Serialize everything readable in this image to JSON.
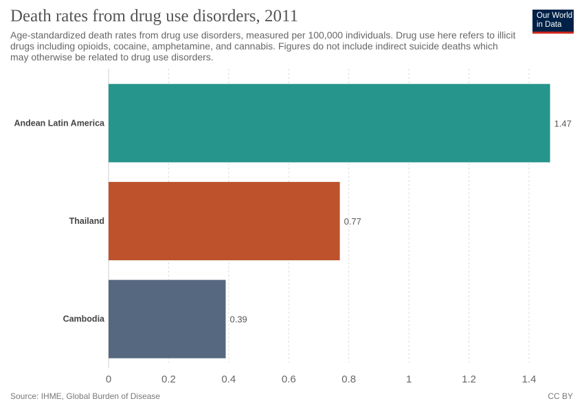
{
  "header": {
    "title": "Death rates from drug use disorders, 2011",
    "subtitle": "Age-standardized death rates from drug use disorders, measured per 100,000 individuals. Drug use here refers to illicit drugs including opioids, cocaine, amphetamine, and cannabis. Figures do not include indirect suicide deaths which may otherwise be related to drug use disorders.",
    "logo_line1": "Our World",
    "logo_line2": "in Data"
  },
  "footer": {
    "source": "Source: IHME, Global Burden of Disease",
    "license": "CC BY"
  },
  "colors": {
    "logo_bg": "#002147",
    "logo_accent": "#ce261e"
  },
  "chart_data": {
    "type": "bar",
    "orientation": "horizontal",
    "categories": [
      "Andean Latin America",
      "Thailand",
      "Cambodia"
    ],
    "values": [
      1.47,
      0.77,
      0.39
    ],
    "value_labels": [
      "1.47",
      "0.77",
      "0.39"
    ],
    "colors": [
      "#26958c",
      "#bd522d",
      "#56687f"
    ],
    "xlim": [
      0,
      1.4
    ],
    "xticks": [
      0,
      0.2,
      0.4,
      0.6,
      0.8,
      1,
      1.2,
      1.4
    ],
    "xtick_labels": [
      "0",
      "0.2",
      "0.4",
      "0.6",
      "0.8",
      "1",
      "1.2",
      "1.4"
    ],
    "grid": "vertical-dashed",
    "legend": "none"
  }
}
